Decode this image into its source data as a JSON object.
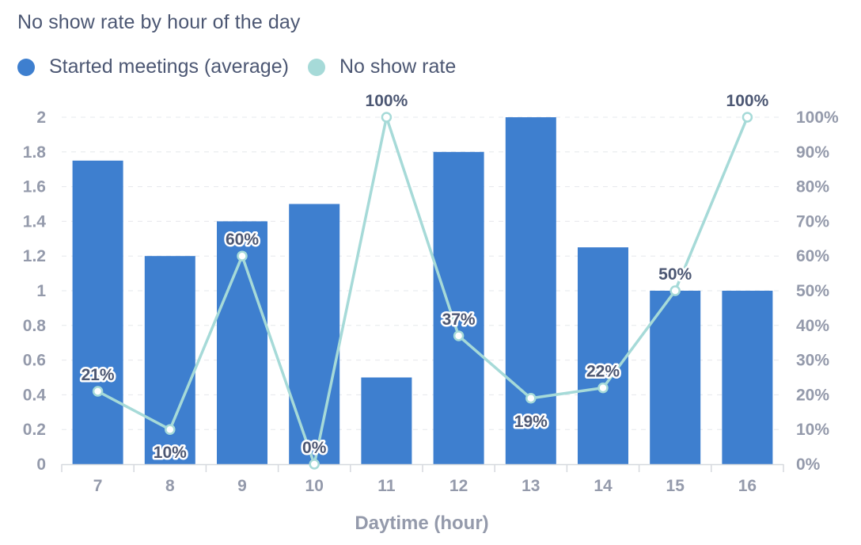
{
  "chart_data": {
    "type": "bar",
    "title": "No show rate by hour of the day",
    "xlabel": "Daytime (hour)",
    "ylabel": "",
    "ylabel_right": "",
    "categories": [
      "7",
      "8",
      "9",
      "10",
      "11",
      "12",
      "13",
      "14",
      "15",
      "16"
    ],
    "ylim": [
      0,
      2
    ],
    "y_ticks": [
      "0",
      "0.2",
      "0.4",
      "0.6",
      "0.8",
      "1",
      "1.2",
      "1.4",
      "1.6",
      "1.8",
      "2"
    ],
    "y2lim": [
      0,
      1
    ],
    "y2_ticks": [
      "0%",
      "10%",
      "20%",
      "30%",
      "40%",
      "50%",
      "60%",
      "70%",
      "80%",
      "90%",
      "100%"
    ],
    "grid": true,
    "legend_position": "top-left",
    "series": [
      {
        "name": "Started meetings (average)",
        "type": "bar",
        "axis": "left",
        "color": "#3e7fcf",
        "values": [
          1.75,
          1.2,
          1.4,
          1.5,
          0.5,
          1.8,
          2.0,
          1.25,
          1.0,
          1.0
        ]
      },
      {
        "name": "No show rate",
        "type": "line",
        "axis": "right",
        "color": "#a6dad8",
        "values": [
          0.21,
          0.1,
          0.6,
          0.0,
          1.0,
          0.37,
          0.19,
          0.22,
          0.5,
          1.0
        ],
        "data_labels": [
          "21%",
          "10%",
          "60%",
          "0%",
          "100%",
          "37%",
          "19%",
          "22%",
          "50%",
          "100%"
        ]
      }
    ]
  }
}
